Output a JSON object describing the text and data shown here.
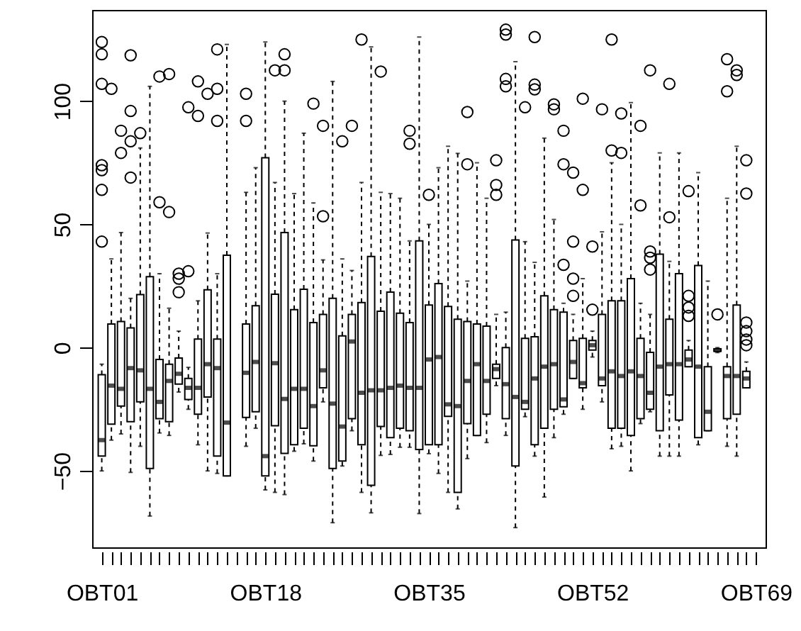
{
  "chart_data": {
    "type": "box",
    "categories": [
      "OBT01",
      null,
      null,
      null,
      null,
      null,
      null,
      null,
      null,
      null,
      null,
      null,
      null,
      null,
      null,
      null,
      null,
      "OBT18",
      null,
      null,
      null,
      null,
      null,
      null,
      null,
      null,
      null,
      null,
      null,
      null,
      null,
      null,
      null,
      null,
      "OBT35",
      null,
      null,
      null,
      null,
      null,
      null,
      null,
      null,
      null,
      null,
      null,
      null,
      null,
      null,
      null,
      null,
      "OBT52",
      null,
      null,
      null,
      null,
      null,
      null,
      null,
      null,
      null,
      null,
      null,
      null,
      null,
      null,
      null,
      null,
      "OBT69"
    ],
    "ylim": [
      -81,
      137
    ],
    "yticks": [
      -50,
      0,
      50,
      100
    ],
    "boxes": [
      {
        "low": -50,
        "q1": -44,
        "median": -37.5,
        "q3": -11,
        "high": -6.7,
        "outliers": [
          119,
          124,
          107,
          74,
          72,
          64,
          43
        ]
      },
      {
        "low": -37.5,
        "q1": -31,
        "median": -15.4,
        "q3": 9.6,
        "high": 36,
        "outliers": [
          105
        ]
      },
      {
        "low": -35,
        "q1": -23.7,
        "median": -16.7,
        "q3": 10.6,
        "high": 46.7,
        "outliers": [
          88,
          79
        ]
      },
      {
        "low": -50.6,
        "q1": -30,
        "median": -8.3,
        "q3": 8,
        "high": 20,
        "outliers": [
          118.6,
          96,
          83.7,
          69
        ]
      },
      {
        "low": -40,
        "q1": -22,
        "median": -9.2,
        "q3": 21.5,
        "high": 81,
        "outliers": [
          87
        ]
      },
      {
        "low": -68.3,
        "q1": -49,
        "median": -16.7,
        "q3": 28.8,
        "high": 106
      },
      {
        "low": -34.6,
        "q1": -28.8,
        "median": -22,
        "q3": -4.8,
        "high": 30,
        "outliers": [
          110,
          59
        ]
      },
      {
        "low": -35.6,
        "q1": -30,
        "median": -13.5,
        "q3": -6.7,
        "high": 16,
        "outliers": [
          111,
          55
        ]
      },
      {
        "low": -18,
        "q1": -14.8,
        "median": -10.6,
        "q3": -4.2,
        "high": 6.7,
        "outliers": [
          30,
          28,
          22.5
        ]
      },
      {
        "low": -25,
        "q1": -21,
        "median": -16.3,
        "q3": -12.5,
        "high": -8,
        "outliers": [
          31,
          97.5
        ]
      },
      {
        "low": -39.4,
        "q1": -27,
        "median": -16.3,
        "q3": 3.5,
        "high": 19,
        "outliers": [
          94,
          108
        ]
      },
      {
        "low": -50,
        "q1": -20,
        "median": -6.7,
        "q3": 23.5,
        "high": 46.5,
        "outliers": [
          103
        ]
      },
      {
        "low": -51,
        "q1": -44,
        "median": -8.3,
        "q3": 3.5,
        "high": 30,
        "outliers": [
          105,
          92,
          121
        ]
      },
      {
        "low": -52,
        "q1": -52,
        "median": -30.4,
        "q3": 37.5,
        "high": 123
      },
      null,
      {
        "low": -40,
        "q1": -28.3,
        "median": -10.2,
        "q3": 9.6,
        "high": 63,
        "outliers": [
          103,
          92
        ]
      },
      {
        "low": -32.7,
        "q1": -26,
        "median": -5.8,
        "q3": 17,
        "high": 73
      },
      {
        "low": -57.7,
        "q1": -52,
        "median": -44,
        "q3": 77,
        "high": 124
      },
      {
        "low": -58.7,
        "q1": -31.7,
        "median": -6.3,
        "q3": 21.7,
        "high": 67,
        "outliers": [
          112.5
        ]
      },
      {
        "low": -59.6,
        "q1": -42.9,
        "median": -20.8,
        "q3": 46.7,
        "high": 100,
        "outliers": [
          119,
          112.5
        ]
      },
      {
        "low": -42,
        "q1": -39.4,
        "median": -16.7,
        "q3": 15.4,
        "high": 62.5
      },
      {
        "low": -39,
        "q1": -32.7,
        "median": -16.7,
        "q3": 23.7,
        "high": 87
      },
      {
        "low": -46,
        "q1": -39.8,
        "median": -23.7,
        "q3": 10.2,
        "high": 58.7,
        "outliers": [
          99
        ]
      },
      {
        "low": -22,
        "q1": -16.3,
        "median": -9.2,
        "q3": 13.5,
        "high": 35.6,
        "outliers": [
          90,
          53.3
        ]
      },
      {
        "low": -71,
        "q1": -49,
        "median": -22.7,
        "q3": 20,
        "high": 108
      },
      {
        "low": -48,
        "q1": -46,
        "median": -32,
        "q3": 4.8,
        "high": 36,
        "outliers": [
          83.7
        ]
      },
      {
        "low": -33.7,
        "q1": -28.8,
        "median": 2.5,
        "q3": 13.5,
        "high": 31.3,
        "outliers": [
          90
        ]
      },
      {
        "low": -58.7,
        "q1": -39.4,
        "median": -18.3,
        "q3": 18.3,
        "high": 67,
        "outliers": [
          125
        ]
      },
      {
        "low": -67,
        "q1": -55.8,
        "median": -17.3,
        "q3": 37,
        "high": 122
      },
      {
        "low": -43.7,
        "q1": -32,
        "median": -17.3,
        "q3": 14.8,
        "high": 63,
        "outliers": [
          112
        ]
      },
      {
        "low": -43.3,
        "q1": -36.5,
        "median": -16.3,
        "q3": 22.5,
        "high": 62.5
      },
      {
        "low": -40.4,
        "q1": -32.7,
        "median": -15.4,
        "q3": 14,
        "high": 60.6
      },
      {
        "low": -40.4,
        "q1": -33.7,
        "median": -16.3,
        "q3": 10.2,
        "high": 43.3,
        "outliers": [
          88,
          82.7
        ]
      },
      {
        "low": -67.3,
        "q1": -41.3,
        "median": -16.3,
        "q3": 43.3,
        "high": 126
      },
      {
        "low": -43,
        "q1": -39.4,
        "median": -4.8,
        "q3": 17.3,
        "high": 50,
        "outliers": [
          62
        ]
      },
      {
        "low": -51,
        "q1": -39.4,
        "median": -3.8,
        "q3": 26,
        "high": 73
      },
      {
        "low": -58.7,
        "q1": -27.9,
        "median": -23,
        "q3": 16.7,
        "high": 81.7
      },
      {
        "low": -65.4,
        "q1": -58.7,
        "median": -23.7,
        "q3": 11.5,
        "high": 78.8
      },
      {
        "low": -45,
        "q1": -30.8,
        "median": -13.5,
        "q3": 10.6,
        "high": 27,
        "outliers": [
          95.6,
          74.4
        ]
      },
      {
        "low": -35.6,
        "q1": -35.6,
        "median": -6.7,
        "q3": 9.6,
        "high": 75
      },
      {
        "low": -38.5,
        "q1": -27,
        "median": -13.5,
        "q3": 8.7,
        "high": 60.6
      },
      {
        "low": -15.4,
        "q1": -12.5,
        "median": -8.7,
        "q3": -6.7,
        "high": 13.5,
        "outliers": [
          76,
          66,
          62
        ]
      },
      {
        "low": -35.6,
        "q1": -28.8,
        "median": -14.8,
        "q3": 0,
        "high": 14.4,
        "outliers": [
          109,
          106,
          127,
          129
        ]
      },
      {
        "low": -73,
        "q1": -48,
        "median": -20,
        "q3": 43.7,
        "high": 116
      },
      {
        "low": -28,
        "q1": -25,
        "median": -22,
        "q3": 3.8,
        "high": 43,
        "outliers": [
          97.5
        ]
      },
      {
        "low": -44,
        "q1": -39.4,
        "median": -12.5,
        "q3": 4.4,
        "high": 34.6,
        "outliers": [
          126,
          106.7,
          104.8
        ]
      },
      {
        "low": -60.6,
        "q1": -32.7,
        "median": -7.7,
        "q3": 21,
        "high": 85
      },
      {
        "low": -36.5,
        "q1": -25,
        "median": -6.7,
        "q3": 15.4,
        "high": 52,
        "outliers": [
          96.7,
          98.7
        ]
      },
      {
        "low": -27,
        "q1": -24,
        "median": -21,
        "q3": 14.4,
        "high": 18,
        "outliers": [
          88,
          74.4,
          33.6
        ]
      },
      {
        "low": -12.5,
        "q1": -12.5,
        "median": -5.8,
        "q3": 2.9,
        "high": 13.5,
        "outliers": [
          71,
          43,
          28,
          21
        ]
      },
      {
        "low": -25,
        "q1": -16.3,
        "median": -14.4,
        "q3": 3.8,
        "high": 28,
        "outliers": [
          101,
          64
        ]
      },
      {
        "low": -3.8,
        "q1": -1,
        "median": 1,
        "q3": 2.9,
        "high": 6.7,
        "outliers": [
          41,
          15.4
        ]
      },
      {
        "low": -22,
        "q1": -15.4,
        "median": -12.5,
        "q3": 13.5,
        "high": 47,
        "outliers": [
          96.7
        ]
      },
      {
        "low": -41,
        "q1": -32.7,
        "median": -9.6,
        "q3": 19,
        "high": 75,
        "outliers": [
          125,
          80
        ]
      },
      {
        "low": -40,
        "q1": -32.7,
        "median": -11.5,
        "q3": 19,
        "high": 50,
        "outliers": [
          95,
          79
        ]
      },
      {
        "low": -50,
        "q1": -35.6,
        "median": -9.6,
        "q3": 28,
        "high": 99.4
      },
      {
        "low": -30.8,
        "q1": -28.8,
        "median": -11.5,
        "q3": 3.8,
        "high": 18,
        "outliers": [
          90,
          57.7
        ]
      },
      {
        "low": -26,
        "q1": -25,
        "median": -18.3,
        "q3": -1.9,
        "high": 13.5,
        "outliers": [
          39,
          36.5,
          31.7,
          112.5
        ]
      },
      {
        "low": -44,
        "q1": -33.7,
        "median": -7.7,
        "q3": 37.9,
        "high": 79
      },
      {
        "low": -44,
        "q1": -19.2,
        "median": -6.7,
        "q3": 11.5,
        "high": 35,
        "outliers": [
          52.9,
          107
        ]
      },
      {
        "low": -44,
        "q1": -29.4,
        "median": -6.7,
        "q3": 30,
        "high": 79
      },
      {
        "low": -7.7,
        "q1": -7.7,
        "median": -4.8,
        "q3": -1,
        "high": 2.9,
        "outliers": [
          63.5,
          21,
          16.3,
          12.9
        ]
      },
      {
        "low": -39.4,
        "q1": -36.5,
        "median": -7.7,
        "q3": 33.3,
        "high": 71
      },
      {
        "low": -33.7,
        "q1": -33.7,
        "median": -26,
        "q3": -7.7,
        "high": 27
      },
      {
        "low": -2,
        "q1": -1.5,
        "median": -1,
        "q3": -0.5,
        "high": 0,
        "outliers": [
          13.5
        ]
      },
      {
        "low": -40,
        "q1": -28.8,
        "median": -11.5,
        "q3": -7.7,
        "high": 60.6,
        "outliers": [
          117,
          104
        ]
      },
      {
        "low": -44,
        "q1": -27,
        "median": -11.5,
        "q3": 17.3,
        "high": 81.7,
        "outliers": [
          112.5,
          110.6
        ]
      },
      {
        "low": -16.3,
        "q1": -16.3,
        "median": -12.5,
        "q3": -9.6,
        "high": -5.8,
        "outliers": [
          76,
          62.5,
          10.2,
          6.7,
          3.3,
          1
        ]
      },
      null
    ]
  }
}
